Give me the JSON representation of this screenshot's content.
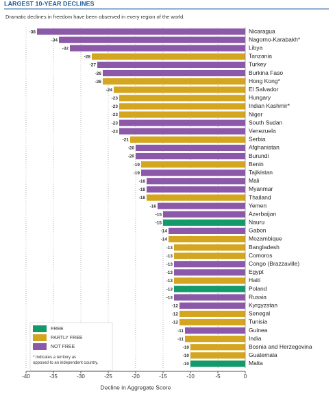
{
  "chart_data": {
    "type": "bar",
    "orientation": "horizontal",
    "title": "LARGEST 10-YEAR DECLINES",
    "subtitle": "Dramatic declines in freedom have been observed in every region of the world.",
    "x_label": "Decline in Aggregate Score",
    "note": "* Indicates a territory as opposed to an independent country.",
    "categories": [
      "Nicaragua",
      "Nagorno-Karabakh*",
      "Libya",
      "Tanzania",
      "Turkey",
      "Burkina Faso",
      "Hong Kong*",
      "El Salvador",
      "Hungary",
      "Indian Kashmir*",
      "Niger",
      "South Sudan",
      "Venezuela",
      "Serbia",
      "Afghanistan",
      "Burundi",
      "Benin",
      "Tajikistan",
      "Mali",
      "Myanmar",
      "Thailand",
      "Yemen",
      "Azerbaijan",
      "Nauru",
      "Gabon",
      "Mozambique",
      "Bangladesh",
      "Comoros",
      "Congo (Brazzaville)",
      "Egypt",
      "Haiti",
      "Poland",
      "Russia",
      "Kyrgyzstan",
      "Senegal",
      "Tunisia",
      "Guinea",
      "India",
      "Bosnia and Herzegovina",
      "Guatemala",
      "Malta"
    ],
    "series": [
      {
        "name": "FREE",
        "color": "#13996a",
        "values": [
          null,
          null,
          null,
          null,
          null,
          null,
          null,
          null,
          null,
          null,
          null,
          null,
          null,
          null,
          null,
          null,
          null,
          null,
          null,
          null,
          null,
          null,
          null,
          -15,
          null,
          null,
          null,
          null,
          null,
          null,
          null,
          -13,
          null,
          null,
          null,
          null,
          null,
          null,
          null,
          null,
          -10
        ]
      },
      {
        "name": "PARTLY FREE",
        "color": "#d4a51f",
        "values": [
          null,
          null,
          null,
          -28,
          null,
          null,
          -26,
          -24,
          -23,
          -23,
          -23,
          null,
          null,
          -21,
          null,
          null,
          -19,
          null,
          null,
          null,
          -18,
          null,
          null,
          null,
          null,
          -14,
          -13,
          -13,
          null,
          null,
          -13,
          null,
          null,
          null,
          -12,
          -12,
          null,
          -11,
          -10,
          -10,
          null
        ]
      },
      {
        "name": "NOT FREE",
        "color": "#8c59a8",
        "values": [
          -38,
          -34,
          -32,
          null,
          -27,
          -26,
          null,
          null,
          null,
          null,
          null,
          -23,
          -23,
          null,
          -20,
          -20,
          null,
          -19,
          -18,
          -18,
          null,
          -16,
          -15,
          null,
          -14,
          null,
          null,
          null,
          -13,
          -13,
          null,
          null,
          -13,
          -12,
          null,
          null,
          -11,
          null,
          null,
          null,
          null
        ]
      }
    ],
    "xlim": [
      -40,
      0
    ],
    "xticks": [
      -40,
      -35,
      -30,
      -25,
      -20,
      -15,
      -10,
      -5,
      0
    ],
    "grid": true,
    "legend": "lower-left"
  }
}
